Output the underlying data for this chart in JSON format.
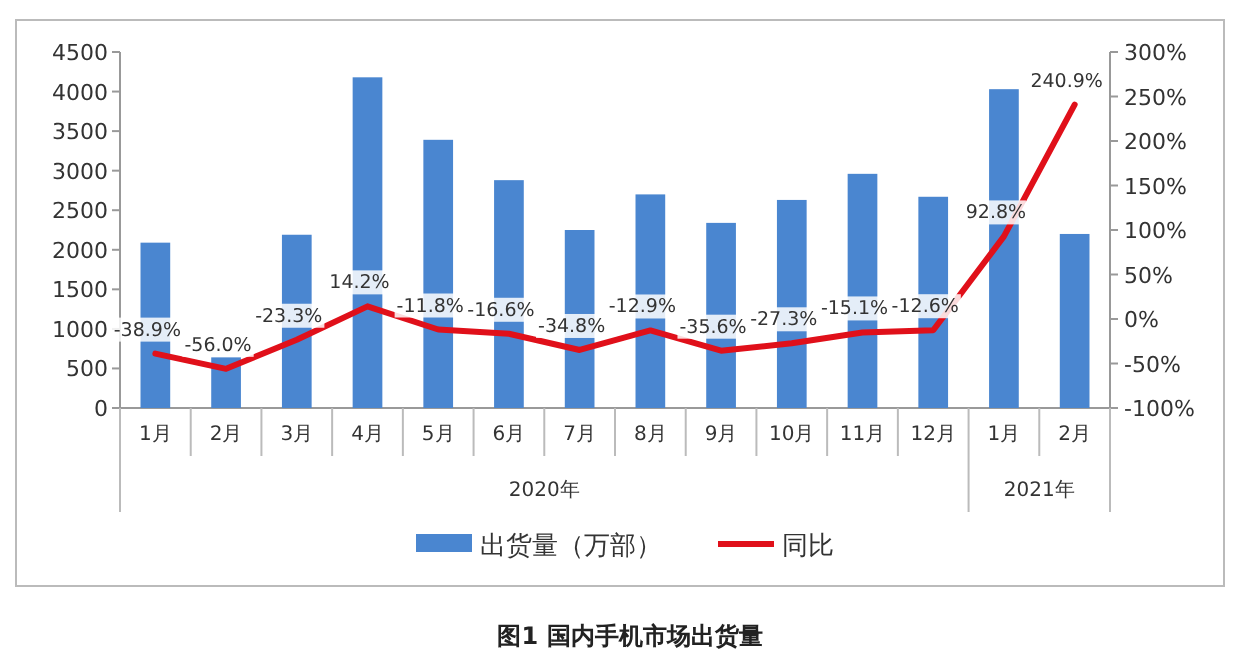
{
  "chart_data": {
    "type": "bar",
    "title": "图1  国内手机市场出货量",
    "categories": [
      "1月",
      "2月",
      "3月",
      "4月",
      "5月",
      "6月",
      "7月",
      "8月",
      "9月",
      "10月",
      "11月",
      "12月",
      "1月",
      "2月"
    ],
    "series": [
      {
        "name": "出货量（万部）",
        "color": "#4a86d0",
        "values": [
          2090,
          640,
          2190,
          4180,
          3390,
          2880,
          2250,
          2700,
          2340,
          2630,
          2960,
          2670,
          4030,
          2200
        ]
      },
      {
        "name": "同比",
        "type": "line",
        "axis": "y2",
        "color": "#e0101a",
        "values": [
          -38.9,
          -56.0,
          -23.3,
          14.2,
          -11.8,
          -16.6,
          -34.8,
          -12.9,
          -35.6,
          -27.3,
          -15.1,
          -12.6,
          92.8,
          240.9
        ],
        "value_labels": [
          "-38.9%",
          "-56.0%",
          "-23.3%",
          "14.2%",
          "-11.8%",
          "-16.6%",
          "-34.8%",
          "-12.9%",
          "-35.6%",
          "-27.3%",
          "-15.1%",
          "-12.6%",
          "92.8%",
          "240.9%"
        ]
      }
    ],
    "ylim": [
      0,
      4500
    ],
    "yticks": [
      0,
      500,
      1000,
      1500,
      2000,
      2500,
      3000,
      3500,
      4000,
      4500
    ],
    "y2lim": [
      -100,
      300
    ],
    "y2ticks": [
      {
        "value": -100,
        "label": "-100%"
      },
      {
        "value": -50,
        "label": "-50%"
      },
      {
        "value": 0,
        "label": "0%"
      },
      {
        "value": 50,
        "label": "50%"
      },
      {
        "value": 100,
        "label": "100%"
      },
      {
        "value": 150,
        "label": "150%"
      },
      {
        "value": 200,
        "label": "200%"
      },
      {
        "value": 250,
        "label": "250%"
      },
      {
        "value": 300,
        "label": "300%"
      }
    ],
    "annotations": [
      "2020年",
      "2021年"
    ],
    "legend": "bottom",
    "grid": false
  }
}
